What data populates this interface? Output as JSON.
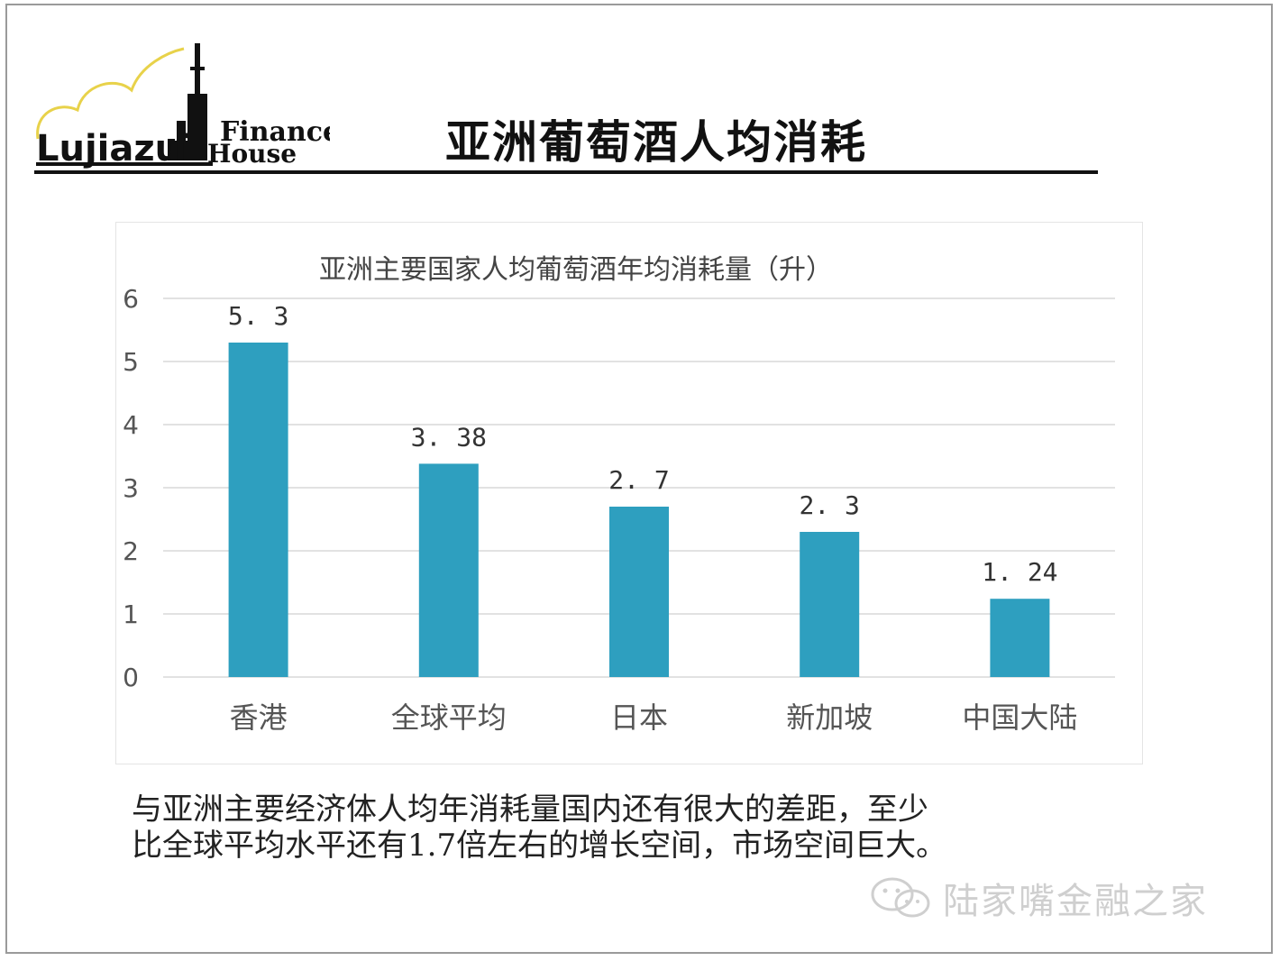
{
  "header": {
    "logo_text": "LujiazuiHouse Finance",
    "title": "亚洲葡萄酒人均消耗"
  },
  "chart_data": {
    "type": "bar",
    "title": "亚洲主要国家人均葡萄酒年均消耗量（升）",
    "categories": [
      "香港",
      "全球平均",
      "日本",
      "新加坡",
      "中国大陆"
    ],
    "values": [
      5.3,
      3.38,
      2.7,
      2.3,
      1.24
    ],
    "value_labels": [
      "5. 3",
      "3. 38",
      "2. 7",
      "2. 3",
      "1. 24"
    ],
    "ylim": [
      0,
      6
    ],
    "yticks": [
      0,
      1,
      2,
      3,
      4,
      5,
      6
    ],
    "grid": true,
    "bar_color": "#2e9fbf",
    "legend": "none",
    "xlabel": "",
    "ylabel": ""
  },
  "note": {
    "line1": "与亚洲主要经济体人均年消耗量国内还有很大的差距，至少",
    "line2": "比全球平均水平还有1.7倍左右的增长空间，市场空间巨大。"
  },
  "watermark": {
    "text": "陆家嘴金融之家",
    "icon": "wechat-icon"
  }
}
